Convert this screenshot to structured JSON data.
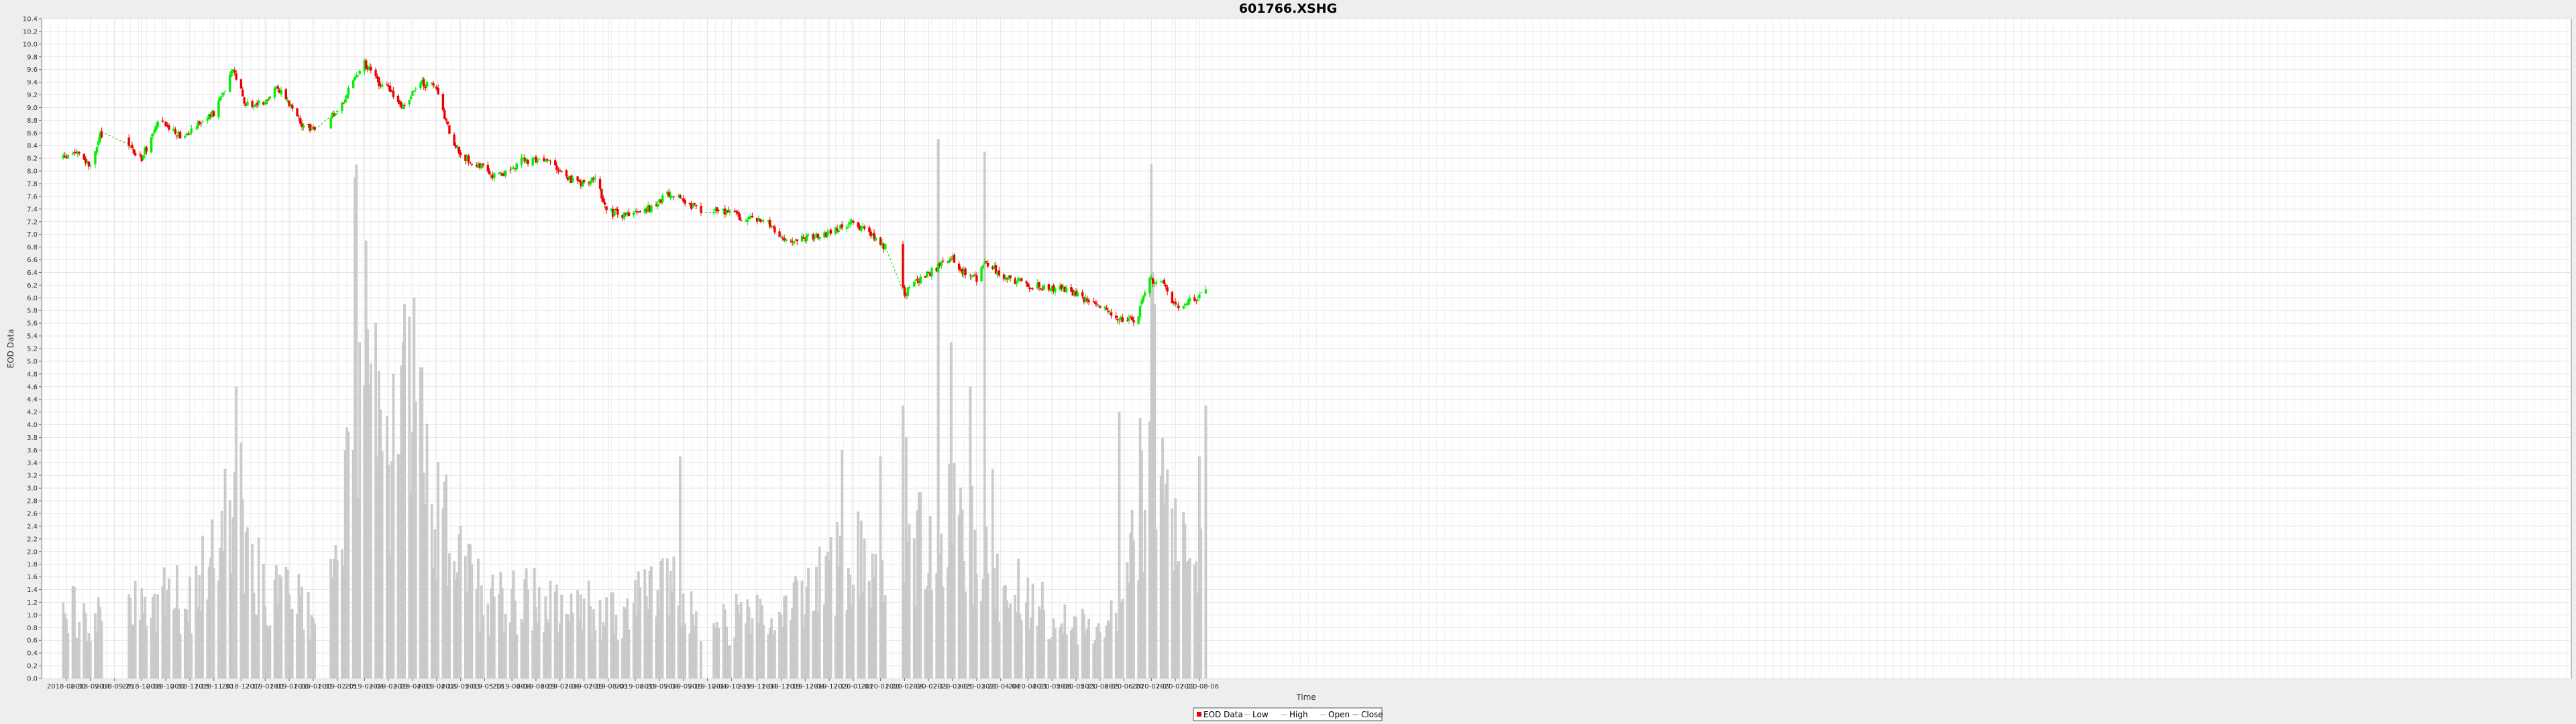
{
  "chart_data": {
    "type": "candlestick",
    "title": "601766.XSHG",
    "xlabel": "Time",
    "ylabel": "EOD Data",
    "ylim": [
      0.0,
      10.4
    ],
    "y_ticks": [
      "0.0",
      "0.2",
      "0.4",
      "0.6",
      "0.8",
      "1.0",
      "1.2",
      "1.4",
      "1.6",
      "1.8",
      "2.0",
      "2.2",
      "2.4",
      "2.6",
      "2.8",
      "3.0",
      "3.2",
      "3.4",
      "3.6",
      "3.8",
      "4.0",
      "4.2",
      "4.4",
      "4.6",
      "4.8",
      "5.0",
      "5.2",
      "5.4",
      "5.6",
      "5.8",
      "6.0",
      "6.2",
      "6.4",
      "6.6",
      "6.8",
      "7.0",
      "7.2",
      "7.4",
      "7.6",
      "7.8",
      "8.0",
      "8.2",
      "8.4",
      "8.6",
      "8.8",
      "9.0",
      "9.2",
      "9.4",
      "9.6",
      "9.8",
      "10.0",
      "10.2",
      "10.4"
    ],
    "x_ticks": [
      "2018-08-30",
      "2018-09-14",
      "2018-09-29",
      "2018-10-16",
      "2018-10-31",
      "2018-11-15",
      "2018-11-30",
      "2018-12-17",
      "2019-01-01",
      "2019-01-16",
      "2019-01-31",
      "2019-02-15",
      "2019-03-04",
      "2019-03-19",
      "2019-04-03",
      "2019-04-18",
      "2019-05-03",
      "2019-05-18",
      "2019-06-04",
      "2019-06-19",
      "2019-07-04",
      "2019-07-19",
      "2019-08-03",
      "2019-08-20",
      "2019-09-04",
      "2019-09-19",
      "2019-10-04",
      "2019-10-19",
      "2019-11-04",
      "2019-11-19",
      "2019-12-04",
      "2019-12-19",
      "2020-01-03",
      "2020-01-20",
      "2020-02-04",
      "2020-02-19",
      "2020-03-05",
      "2020-03-20",
      "2020-04-04",
      "2020-04-21",
      "2020-05-06",
      "2020-05-21",
      "2020-06-05",
      "2020-06-20",
      "2020-07-07",
      "2020-07-22",
      "2020-08-06"
    ],
    "x_tick_interval_days": 15,
    "grid": true,
    "legend_position": "bottom-center",
    "legend": [
      "EOD Data",
      "Low",
      "High",
      "Open",
      "Close"
    ],
    "colors": {
      "up": "#00ee00",
      "down": "#ee0000",
      "volume": "#cccccc",
      "gap_line": "#00cc00",
      "plot_bg": "#ffffff",
      "grid": "#e4e4e4"
    },
    "volume_note": "volume bars share the price axis scale",
    "price_anchors": [
      [
        "2018-08-28",
        8.2
      ],
      [
        "2018-09-05",
        8.3
      ],
      [
        "2018-09-14",
        8.05
      ],
      [
        "2018-09-20",
        8.55
      ],
      [
        "2018-10-01",
        8.7
      ],
      [
        "2018-10-11",
        8.3
      ],
      [
        "2018-10-16",
        8.2
      ],
      [
        "2018-10-26",
        8.75
      ],
      [
        "2018-11-01",
        8.7
      ],
      [
        "2018-11-10",
        8.55
      ],
      [
        "2018-11-20",
        8.75
      ],
      [
        "2018-11-30",
        8.9
      ],
      [
        "2018-12-12",
        9.6
      ],
      [
        "2018-12-20",
        9.05
      ],
      [
        "2019-01-01",
        9.1
      ],
      [
        "2019-01-08",
        9.35
      ],
      [
        "2019-01-16",
        9.05
      ],
      [
        "2019-01-25",
        8.7
      ],
      [
        "2019-02-01",
        8.65
      ],
      [
        "2019-02-15",
        8.95
      ],
      [
        "2019-02-25",
        9.4
      ],
      [
        "2019-03-04",
        9.7
      ],
      [
        "2019-03-12",
        9.4
      ],
      [
        "2019-03-19",
        9.3
      ],
      [
        "2019-03-28",
        9.0
      ],
      [
        "2019-04-08",
        9.4
      ],
      [
        "2019-04-18",
        9.3
      ],
      [
        "2019-04-26",
        8.6
      ],
      [
        "2019-05-03",
        8.2
      ],
      [
        "2019-05-15",
        8.1
      ],
      [
        "2019-05-25",
        7.9
      ],
      [
        "2019-06-10",
        8.15
      ],
      [
        "2019-06-25",
        8.2
      ],
      [
        "2019-07-04",
        7.95
      ],
      [
        "2019-07-15",
        7.8
      ],
      [
        "2019-07-26",
        7.9
      ],
      [
        "2019-08-03",
        7.35
      ],
      [
        "2019-08-15",
        7.3
      ],
      [
        "2019-08-28",
        7.4
      ],
      [
        "2019-09-10",
        7.65
      ],
      [
        "2019-09-19",
        7.55
      ],
      [
        "2019-09-30",
        7.35
      ],
      [
        "2019-10-15",
        7.35
      ],
      [
        "2019-10-28",
        7.25
      ],
      [
        "2019-11-10",
        7.2
      ],
      [
        "2019-11-19",
        6.9
      ],
      [
        "2019-12-01",
        6.95
      ],
      [
        "2019-12-15",
        7.0
      ],
      [
        "2020-01-03",
        7.2
      ],
      [
        "2020-01-14",
        7.0
      ],
      [
        "2020-01-23",
        6.8
      ],
      [
        "2020-02-04",
        6.05
      ],
      [
        "2020-02-15",
        6.35
      ],
      [
        "2020-02-24",
        6.45
      ],
      [
        "2020-03-03",
        6.65
      ],
      [
        "2020-03-12",
        6.4
      ],
      [
        "2020-03-20",
        6.3
      ],
      [
        "2020-03-25",
        6.55
      ],
      [
        "2020-04-05",
        6.35
      ],
      [
        "2020-04-21",
        6.2
      ],
      [
        "2020-05-10",
        6.15
      ],
      [
        "2020-05-25",
        6.0
      ],
      [
        "2020-06-05",
        5.9
      ],
      [
        "2020-06-15",
        5.65
      ],
      [
        "2020-06-28",
        5.65
      ],
      [
        "2020-07-05",
        6.3
      ],
      [
        "2020-07-15",
        6.2
      ],
      [
        "2020-07-22",
        5.85
      ],
      [
        "2020-08-01",
        5.95
      ],
      [
        "2020-08-10",
        6.1
      ]
    ],
    "volume_anchors": [
      [
        "2018-08-28",
        1.1
      ],
      [
        "2018-09-14",
        0.9
      ],
      [
        "2018-09-29",
        1.2
      ],
      [
        "2018-10-16",
        1.1
      ],
      [
        "2018-10-31",
        1.3
      ],
      [
        "2018-11-15",
        1.2
      ],
      [
        "2018-11-30",
        1.9
      ],
      [
        "2018-12-17",
        2.6
      ],
      [
        "2019-01-01",
        1.2
      ],
      [
        "2019-01-16",
        1.4
      ],
      [
        "2019-01-31",
        0.9
      ],
      [
        "2019-02-15",
        1.6
      ],
      [
        "2019-02-25",
        3.6
      ],
      [
        "2019-03-04",
        4.4
      ],
      [
        "2019-03-19",
        3.2
      ],
      [
        "2019-04-03",
        4.3
      ],
      [
        "2019-04-18",
        2.6
      ],
      [
        "2019-05-03",
        1.9
      ],
      [
        "2019-05-18",
        1.1
      ],
      [
        "2019-06-04",
        1.2
      ],
      [
        "2019-06-19",
        1.3
      ],
      [
        "2019-07-04",
        1.0
      ],
      [
        "2019-07-19",
        1.2
      ],
      [
        "2019-08-03",
        0.9
      ],
      [
        "2019-08-20",
        1.2
      ],
      [
        "2019-09-04",
        1.3
      ],
      [
        "2019-09-19",
        1.4
      ],
      [
        "2019-10-04",
        0.8
      ],
      [
        "2019-10-19",
        0.9
      ],
      [
        "2019-11-04",
        1.1
      ],
      [
        "2019-11-19",
        1.0
      ],
      [
        "2019-12-04",
        1.2
      ],
      [
        "2019-12-19",
        1.6
      ],
      [
        "2020-01-03",
        2.0
      ],
      [
        "2020-01-20",
        1.7
      ],
      [
        "2020-02-04",
        1.8
      ],
      [
        "2020-02-19",
        2.3
      ],
      [
        "2020-03-05",
        2.6
      ],
      [
        "2020-03-20",
        2.0
      ],
      [
        "2020-04-04",
        1.3
      ],
      [
        "2020-04-21",
        1.3
      ],
      [
        "2020-05-06",
        0.9
      ],
      [
        "2020-05-21",
        0.9
      ],
      [
        "2020-06-05",
        1.0
      ],
      [
        "2020-06-20",
        1.3
      ],
      [
        "2020-07-07",
        3.4
      ],
      [
        "2020-07-22",
        2.0
      ],
      [
        "2020-08-10",
        2.4
      ]
    ],
    "volume_spikes": [
      [
        "2019-02-26",
        7.9
      ],
      [
        "2019-02-27",
        8.1
      ],
      [
        "2019-03-01",
        5.3
      ],
      [
        "2019-03-05",
        6.9
      ],
      [
        "2019-03-06",
        5.5
      ],
      [
        "2019-03-11",
        5.6
      ],
      [
        "2019-03-22",
        4.8
      ],
      [
        "2019-03-29",
        5.9
      ],
      [
        "2019-04-01",
        5.7
      ],
      [
        "2019-04-08",
        4.9
      ],
      [
        "2019-02-20",
        3.6
      ],
      [
        "2018-12-14",
        4.6
      ],
      [
        "2018-12-07",
        3.3
      ],
      [
        "2020-02-25",
        8.5
      ],
      [
        "2020-03-04",
        5.3
      ],
      [
        "2020-03-25",
        8.3
      ],
      [
        "2020-03-30",
        3.3
      ],
      [
        "2020-07-07",
        8.1
      ],
      [
        "2020-07-08",
        6.4
      ],
      [
        "2020-07-09",
        5.9
      ],
      [
        "2020-08-06",
        3.5
      ],
      [
        "2020-08-10",
        4.3
      ],
      [
        "2020-08-11",
        2.7
      ],
      [
        "2019-09-17",
        3.5
      ],
      [
        "2019-12-27",
        3.6
      ],
      [
        "2020-01-20",
        3.5
      ],
      [
        "2020-02-03",
        4.3
      ],
      [
        "2020-02-05",
        3.8
      ],
      [
        "2020-06-17",
        4.2
      ],
      [
        "2020-06-30",
        4.1
      ],
      [
        "2020-03-16",
        4.6
      ]
    ],
    "gaps": [
      [
        "2018-09-24",
        "2018-10-07"
      ],
      [
        "2019-02-04",
        "2019-02-10"
      ],
      [
        "2019-10-01",
        "2019-10-07"
      ],
      [
        "2020-01-24",
        "2020-02-02"
      ]
    ]
  }
}
